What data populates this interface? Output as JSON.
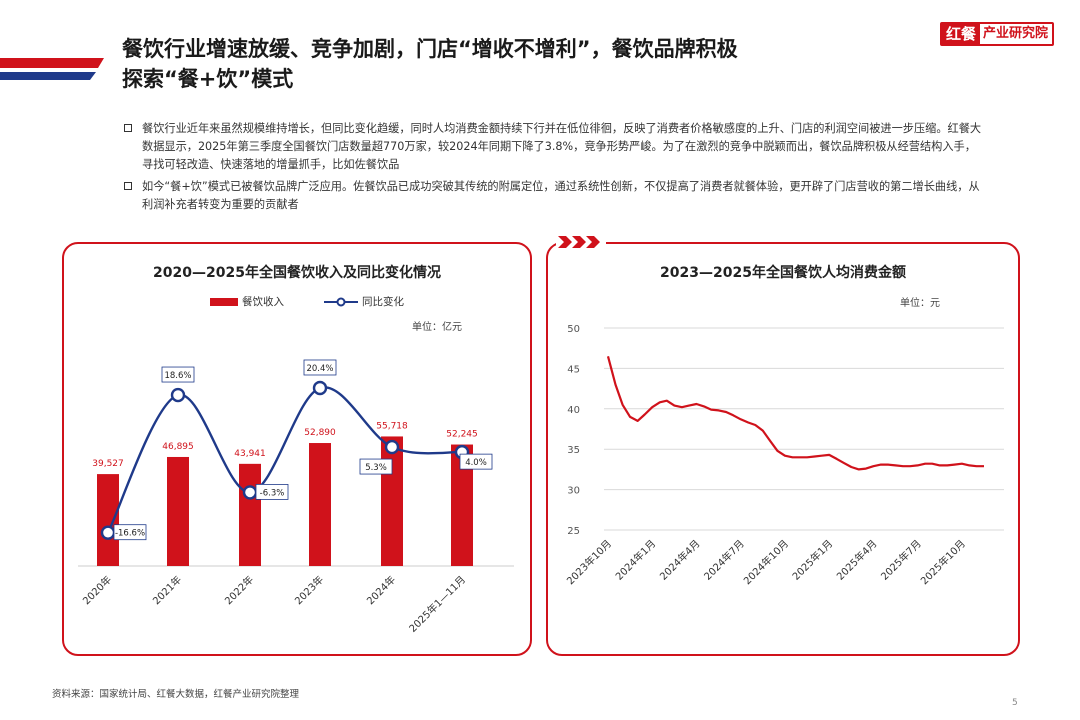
{
  "header": {
    "title_line1": "餐饮行业增速放缓、竞争加剧，门店“增收不增利”，餐饮品牌积极",
    "title_line2": "探索“餐+饮”模式",
    "logo_mark": "红餐",
    "logo_text": "产业研究院",
    "brand_color": "#d0121b"
  },
  "bullets": [
    "餐饮行业近年来虽然规模维持增长，但同比变化趋缓，同时人均消费金额持续下行并在低位徘徊，反映了消费者价格敏感度的上升、门店的利润空间被进一步压缩。红餐大数据显示，2025年第三季度全国餐饮门店数量超770万家，较2024年同期下降了3.8%，竞争形势严峻。为了在激烈的竞争中脱颖而出，餐饮品牌积极从经营结构入手，寻找可轻改造、快速落地的增量抓手，比如佐餐饮品",
    "如今“餐+饮”模式已被餐饮品牌广泛应用。佐餐饮品已成功突破其传统的附属定位，通过系统性创新，不仅提高了消费者就餐体验，更开辟了门店营收的第二增长曲线，从利润补充者转变为重要的贡献者"
  ],
  "left_chart_meta": {
    "title": "2020—2025年全国餐饮收入及同比变化情况",
    "unit": "单位：亿元",
    "legend_bar": "餐饮收入",
    "legend_line": "同比变化"
  },
  "right_chart_meta": {
    "title": "2023—2025年全国餐饮人均消费金额",
    "unit": "单位：元"
  },
  "chart_data": [
    {
      "type": "bar",
      "title": "2020—2025年全国餐饮收入及同比变化情况",
      "categories": [
        "2020年",
        "2021年",
        "2022年",
        "2023年",
        "2024年",
        "2025年1—11月"
      ],
      "series": [
        {
          "name": "餐饮收入",
          "type": "bar",
          "values": [
            39527,
            46895,
            43941,
            52890,
            55718,
            52245
          ],
          "labels": [
            "39,527",
            "46,895",
            "43,941",
            "52,890",
            "55,718",
            "52,245"
          ],
          "color": "#d0121b"
        },
        {
          "name": "同比变化",
          "type": "line",
          "values": [
            -16.6,
            18.6,
            -6.3,
            20.4,
            5.3,
            4.0
          ],
          "labels": [
            "-16.6%",
            "18.6%",
            "-6.3%",
            "20.4%",
            "5.3%",
            "4.0%"
          ],
          "color": "#1f3a8a"
        }
      ],
      "unit": "单位：亿元",
      "grid": false,
      "legend": "top"
    },
    {
      "type": "line",
      "title": "2023—2025年全国餐饮人均消费金额",
      "x_ticks": [
        "2023年10月",
        "2024年1月",
        "2024年4月",
        "2024年7月",
        "2024年10月",
        "2025年1月",
        "2025年4月",
        "2025年7月",
        "2025年10月"
      ],
      "y_ticks": [
        25,
        30,
        35,
        40,
        45,
        50
      ],
      "ylim": [
        25,
        50
      ],
      "series": [
        {
          "name": "",
          "color": "#d0121b",
          "points": [
            [
              0,
              46.5
            ],
            [
              0.17,
              43.0
            ],
            [
              0.33,
              40.5
            ],
            [
              0.5,
              39.0
            ],
            [
              0.67,
              38.5
            ],
            [
              0.83,
              39.3
            ],
            [
              1.0,
              40.2
            ],
            [
              1.17,
              40.8
            ],
            [
              1.33,
              41.0
            ],
            [
              1.5,
              40.4
            ],
            [
              1.67,
              40.2
            ],
            [
              1.83,
              40.4
            ],
            [
              2.0,
              40.6
            ],
            [
              2.17,
              40.3
            ],
            [
              2.33,
              39.9
            ],
            [
              2.5,
              39.8
            ],
            [
              2.67,
              39.6
            ],
            [
              2.83,
              39.2
            ],
            [
              3.0,
              38.7
            ],
            [
              3.17,
              38.3
            ],
            [
              3.33,
              38.0
            ],
            [
              3.5,
              37.3
            ],
            [
              3.67,
              36.0
            ],
            [
              3.83,
              34.8
            ],
            [
              4.0,
              34.2
            ],
            [
              4.17,
              34.0
            ],
            [
              4.33,
              34.0
            ],
            [
              4.5,
              34.0
            ],
            [
              4.67,
              34.1
            ],
            [
              4.83,
              34.2
            ],
            [
              5.0,
              34.3
            ],
            [
              5.17,
              33.8
            ],
            [
              5.33,
              33.3
            ],
            [
              5.5,
              32.8
            ],
            [
              5.67,
              32.5
            ],
            [
              5.83,
              32.6
            ],
            [
              6.0,
              32.9
            ],
            [
              6.17,
              33.1
            ],
            [
              6.33,
              33.1
            ],
            [
              6.5,
              33.0
            ],
            [
              6.67,
              32.9
            ],
            [
              6.83,
              32.9
            ],
            [
              7.0,
              33.0
            ],
            [
              7.17,
              33.2
            ],
            [
              7.33,
              33.2
            ],
            [
              7.5,
              33.0
            ],
            [
              7.67,
              33.0
            ],
            [
              7.83,
              33.1
            ],
            [
              8.0,
              33.2
            ],
            [
              8.17,
              33.0
            ],
            [
              8.33,
              32.9
            ],
            [
              8.5,
              32.9
            ]
          ]
        }
      ],
      "grid": true
    }
  ],
  "footer": {
    "source": "资料来源：国家统计局、红餐大数据，红餐产业研究院整理",
    "page": "5"
  }
}
